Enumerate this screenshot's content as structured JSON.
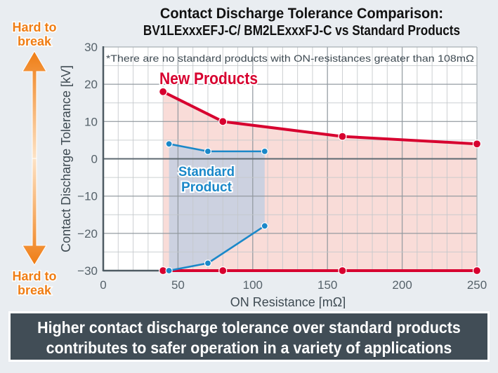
{
  "chart_data": {
    "type": "line",
    "title": "Contact Discharge Tolerance Comparison:",
    "subtitle": "BV1LExxxEFJ-C/ BM2LExxxFJ-C vs Standard Products",
    "xlabel": "ON Resistance [mΩ]",
    "ylabel": "Contact Discharge Tolerance [kV]",
    "xlim": [
      0,
      250
    ],
    "ylim": [
      -30,
      30
    ],
    "xticks": [
      0,
      50,
      100,
      150,
      200,
      250
    ],
    "yticks": [
      30,
      20,
      10,
      0,
      -10,
      -20,
      -30
    ],
    "ytick_labels": [
      "30",
      "20",
      "10",
      "0",
      "−10",
      "−20",
      "−30"
    ],
    "grid": true,
    "note": "*There are no standard products with ON-resistances greater than 108mΩ",
    "series": [
      {
        "name": "New Products",
        "label": "New Products",
        "color": "#d7002f",
        "fill": "#f9dcd8",
        "upper": {
          "x": [
            40,
            80,
            160,
            250
          ],
          "y": [
            18,
            10,
            6,
            4
          ]
        },
        "lower": {
          "x": [
            40,
            80,
            160,
            250
          ],
          "y": [
            -30,
            -30,
            -30,
            -30
          ]
        }
      },
      {
        "name": "Standard Product",
        "label_line1": "Standard",
        "label_line2": "Product",
        "color": "#1a88c9",
        "fill": "#c9d0e0",
        "upper": {
          "x": [
            44,
            70,
            108
          ],
          "y": [
            4,
            2,
            2
          ]
        },
        "lower": {
          "x": [
            44,
            70,
            108
          ],
          "y": [
            -30,
            -28,
            -18
          ]
        }
      }
    ]
  },
  "side_annotations": {
    "top_label": "Hard to\nbreak",
    "bottom_label": "Hard to\nbreak",
    "color": "#ef7d14"
  },
  "footer": {
    "line1": "Higher contact discharge tolerance over standard products",
    "line2": "contributes to safer operation in a variety of applications"
  }
}
